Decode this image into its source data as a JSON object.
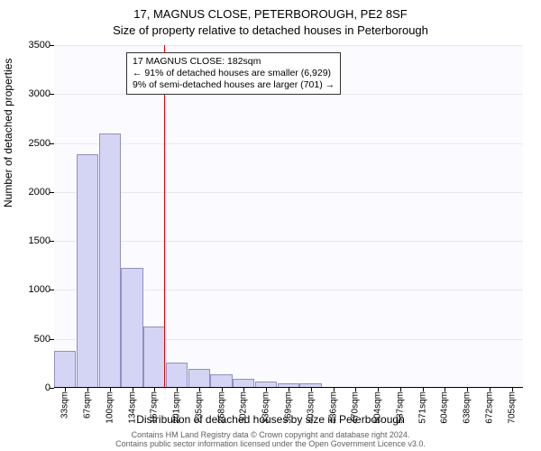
{
  "title_line1": "17, MAGNUS CLOSE, PETERBOROUGH, PE2 8SF",
  "title_line2": "Size of property relative to detached houses in Peterborough",
  "ylabel": "Number of detached properties",
  "xlabel": "Distribution of detached houses by size in Peterborough",
  "footnote_line1": "Contains HM Land Registry data © Crown copyright and database right 2024.",
  "footnote_line2": "Contains public sector information licensed under the Open Government Licence v3.0.",
  "annotation": {
    "line1": "17 MAGNUS CLOSE: 182sqm",
    "line2": "← 91% of detached houses are smaller (6,929)",
    "line3": "9% of semi-detached houses are larger (701) →"
  },
  "chart": {
    "type": "histogram",
    "background_color": "#fafaff",
    "grid_color": "#e8e8f0",
    "bar_fill": "#d4d4f4",
    "bar_stroke": "#9090c0",
    "marker_color": "#ee0000",
    "ylim": [
      0,
      3500
    ],
    "ytick_step": 500,
    "yticks": [
      0,
      500,
      1000,
      1500,
      2000,
      2500,
      3000,
      3500
    ],
    "xtick_labels": [
      "33sqm",
      "67sqm",
      "100sqm",
      "134sqm",
      "167sqm",
      "201sqm",
      "235sqm",
      "268sqm",
      "302sqm",
      "336sqm",
      "369sqm",
      "403sqm",
      "436sqm",
      "470sqm",
      "504sqm",
      "537sqm",
      "571sqm",
      "604sqm",
      "638sqm",
      "672sqm",
      "705sqm"
    ],
    "values": [
      370,
      2380,
      2590,
      1220,
      620,
      250,
      180,
      130,
      80,
      60,
      40,
      40,
      0,
      0,
      0,
      0,
      0,
      0,
      0,
      0,
      0
    ],
    "marker_x_sqm": 182,
    "x_range_sqm": [
      16.5,
      722
    ],
    "title_fontsize": 13,
    "label_fontsize": 12,
    "tick_fontsize": 11,
    "footnote_fontsize": 9,
    "footnote_color": "#606060"
  }
}
